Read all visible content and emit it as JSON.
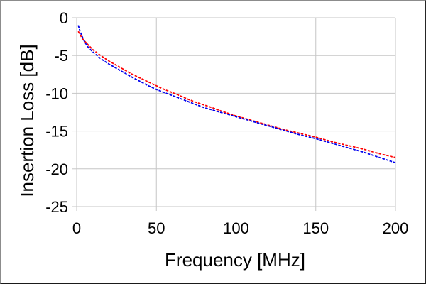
{
  "window": {
    "background": "#ffffff",
    "border_top_left_color": "#8c8c8c",
    "border_bottom_right_color": "#1f1f1f"
  },
  "chart_data": {
    "type": "line",
    "title": "",
    "xlabel": "Frequency [MHz]",
    "ylabel": "Insertion Loss [dB]",
    "xlim": [
      0,
      200
    ],
    "ylim": [
      -25,
      0
    ],
    "x_ticks": [
      0,
      50,
      100,
      150,
      200
    ],
    "y_ticks": [
      0,
      -5,
      -10,
      -15,
      -20,
      -25
    ],
    "grid": true,
    "legend": "none",
    "grid_color": "#c6c6c6",
    "axis_color": "#c6c6c6",
    "tick_label_color": "#000000",
    "x": [
      1,
      2,
      3,
      4,
      5,
      7,
      10,
      15,
      20,
      25,
      30,
      35,
      40,
      45,
      50,
      55,
      60,
      65,
      70,
      75,
      80,
      85,
      90,
      95,
      100,
      105,
      110,
      115,
      120,
      125,
      130,
      135,
      140,
      145,
      150,
      155,
      160,
      165,
      170,
      175,
      180,
      185,
      190,
      195,
      200
    ],
    "series": [
      {
        "name": "red-dashed-series",
        "color": "#ff0000",
        "dash": "3.6 1.8",
        "width": 1.8,
        "values": [
          -1.8,
          -2.2,
          -2.55,
          -2.85,
          -3.1,
          -3.55,
          -4.2,
          -5.0,
          -5.7,
          -6.3,
          -6.9,
          -7.5,
          -8.0,
          -8.5,
          -9.0,
          -9.5,
          -9.9,
          -10.35,
          -10.8,
          -11.2,
          -11.55,
          -11.9,
          -12.3,
          -12.65,
          -13.0,
          -13.3,
          -13.6,
          -13.9,
          -14.2,
          -14.5,
          -14.8,
          -15.05,
          -15.3,
          -15.55,
          -15.8,
          -16.1,
          -16.4,
          -16.65,
          -16.9,
          -17.15,
          -17.4,
          -17.7,
          -18.0,
          -18.25,
          -18.5
        ]
      },
      {
        "name": "blue-dashed-series",
        "color": "#0000ee",
        "dash": "3.6 1.8",
        "width": 1.8,
        "values": [
          -1.0,
          -1.7,
          -2.25,
          -2.75,
          -3.2,
          -3.85,
          -4.5,
          -5.4,
          -6.1,
          -6.7,
          -7.3,
          -7.9,
          -8.45,
          -9.0,
          -9.5,
          -9.9,
          -10.3,
          -10.7,
          -11.1,
          -11.5,
          -11.9,
          -12.2,
          -12.5,
          -12.8,
          -13.1,
          -13.4,
          -13.7,
          -14.0,
          -14.3,
          -14.6,
          -14.9,
          -15.2,
          -15.5,
          -15.75,
          -16.0,
          -16.3,
          -16.6,
          -16.9,
          -17.2,
          -17.5,
          -17.8,
          -18.15,
          -18.5,
          -18.85,
          -19.2
        ]
      }
    ]
  }
}
